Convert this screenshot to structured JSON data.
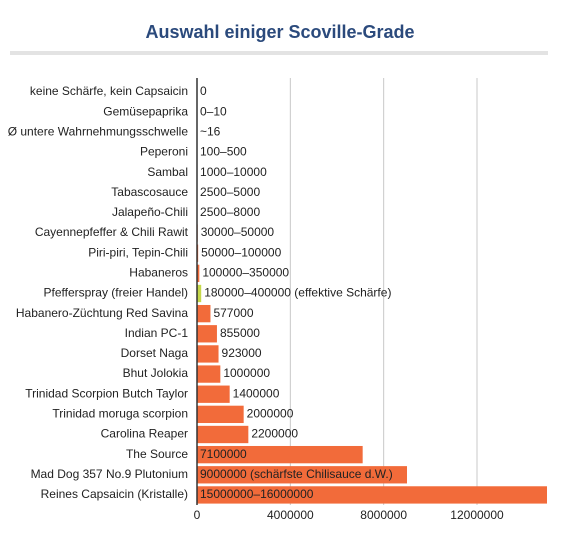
{
  "chart_data": {
    "type": "bar",
    "orientation": "horizontal",
    "title": "Auswahl einiger Scoville-Grade",
    "categories": [
      "keine Schärfe, kein Capsaicin",
      "Gemüsepaprika",
      "Ø untere Wahrnehmungsschwelle",
      "Peperoni",
      "Sambal",
      "Tabascosauce",
      "Jalapeño-Chili",
      "Cayennepfeffer & Chili Rawit",
      "Piri-piri, Tepin-Chili",
      "Habaneros",
      "Pfefferspray (freier Handel)",
      "Habanero-Züchtung Red Savina",
      "Indian PC-1",
      "Dorset Naga",
      "Bhut Jolokia",
      "Trinidad Scorpion Butch Taylor",
      "Trinidad moruga scorpion",
      "Carolina Reaper",
      "The Source",
      "Mad Dog 357 No.9 Plutonium",
      "Reines Capsaicin (Kristalle)"
    ],
    "values": [
      0,
      0,
      16,
      100,
      1000,
      2500,
      2500,
      30000,
      50000,
      100000,
      180000,
      577000,
      855000,
      923000,
      1000000,
      1400000,
      2000000,
      2200000,
      7100000,
      9000000,
      15000000
    ],
    "value_labels": [
      "0",
      "0–10",
      "~16",
      "100–500",
      "1000–10000",
      "2500–5000",
      "2500–8000",
      "30000–50000",
      "50000–100000",
      "100000–350000",
      "180000–400000 (effektive Schärfe)",
      "577000",
      "855000",
      "923000",
      "1000000",
      "1400000",
      "2000000",
      "2200000",
      "7100000",
      "9000000 (schärfste Chilisauce d.W.)",
      "15000000–16000000"
    ],
    "colors": [
      "#f26b3a",
      "#f26b3a",
      "#f26b3a",
      "#f26b3a",
      "#f26b3a",
      "#f26b3a",
      "#f26b3a",
      "#f26b3a",
      "#f26b3a",
      "#f26b3a",
      "#c5d84a",
      "#f26b3a",
      "#f26b3a",
      "#f26b3a",
      "#f26b3a",
      "#f26b3a",
      "#f26b3a",
      "#f26b3a",
      "#f26b3a",
      "#f26b3a",
      "#f26b3a"
    ],
    "xlim": [
      0,
      15000000
    ],
    "xticks": [
      0,
      4000000,
      8000000,
      12000000
    ],
    "grid": true
  }
}
